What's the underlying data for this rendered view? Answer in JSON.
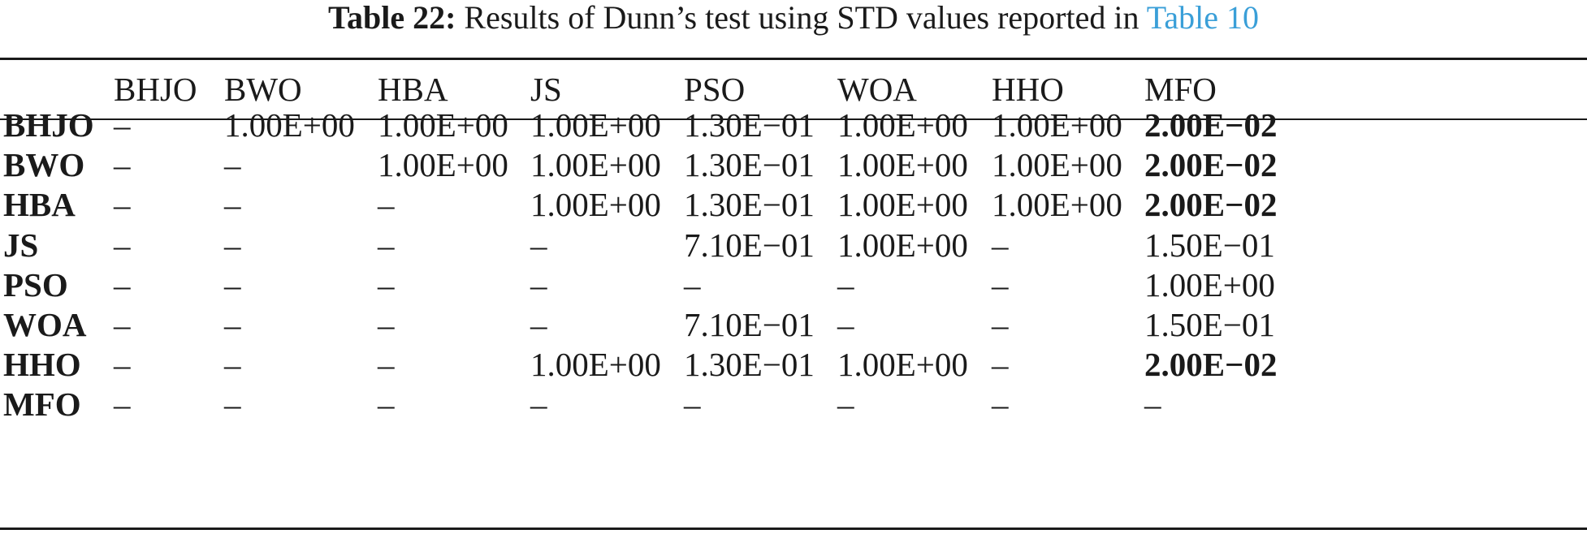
{
  "caption": {
    "label": "Table 22:",
    "text": "Results of Dunn’s test using STD values reported in",
    "ref": "Table 10"
  },
  "table": {
    "columns": [
      "BHJO",
      "BWO",
      "HBA",
      "JS",
      "PSO",
      "WOA",
      "HHO",
      "MFO"
    ],
    "rows": [
      {
        "label": "BHJO",
        "cells": [
          "–",
          "1.00E+00",
          "1.00E+00",
          "1.00E+00",
          "1.30E−01",
          "1.00E+00",
          "1.00E+00",
          "2.00E−02"
        ],
        "bold": [
          false,
          false,
          false,
          false,
          false,
          false,
          false,
          true
        ]
      },
      {
        "label": "BWO",
        "cells": [
          "–",
          "–",
          "1.00E+00",
          "1.00E+00",
          "1.30E−01",
          "1.00E+00",
          "1.00E+00",
          "2.00E−02"
        ],
        "bold": [
          false,
          false,
          false,
          false,
          false,
          false,
          false,
          true
        ]
      },
      {
        "label": "HBA",
        "cells": [
          "–",
          "–",
          "–",
          "1.00E+00",
          "1.30E−01",
          "1.00E+00",
          "1.00E+00",
          "2.00E−02"
        ],
        "bold": [
          false,
          false,
          false,
          false,
          false,
          false,
          false,
          true
        ]
      },
      {
        "label": "JS",
        "cells": [
          "–",
          "–",
          "–",
          "–",
          "7.10E−01",
          "1.00E+00",
          "–",
          "1.50E−01"
        ],
        "bold": [
          false,
          false,
          false,
          false,
          false,
          false,
          false,
          false
        ]
      },
      {
        "label": "PSO",
        "cells": [
          "–",
          "–",
          "–",
          "–",
          "–",
          "–",
          "–",
          "1.00E+00"
        ],
        "bold": [
          false,
          false,
          false,
          false,
          false,
          false,
          false,
          false
        ]
      },
      {
        "label": "WOA",
        "cells": [
          "–",
          "–",
          "–",
          "–",
          "7.10E−01",
          "–",
          "–",
          "1.50E−01"
        ],
        "bold": [
          false,
          false,
          false,
          false,
          false,
          false,
          false,
          false
        ]
      },
      {
        "label": "HHO",
        "cells": [
          "–",
          "–",
          "–",
          "1.00E+00",
          "1.30E−01",
          "1.00E+00",
          "–",
          "2.00E−02"
        ],
        "bold": [
          false,
          false,
          false,
          false,
          false,
          false,
          false,
          true
        ]
      },
      {
        "label": "MFO",
        "cells": [
          "–",
          "–",
          "–",
          "–",
          "–",
          "–",
          "–",
          "–"
        ],
        "bold": [
          false,
          false,
          false,
          false,
          false,
          false,
          false,
          false
        ]
      }
    ]
  }
}
